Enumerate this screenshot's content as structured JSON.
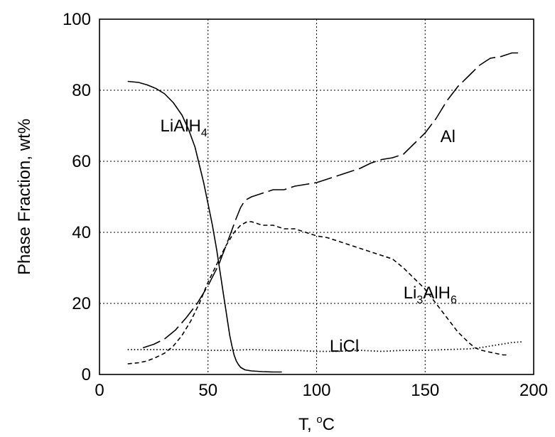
{
  "chart_data": {
    "type": "line",
    "title": "",
    "xlabel": "T, °C",
    "ylabel": "Phase Fraction, wt%",
    "xlim": [
      0,
      200
    ],
    "ylim": [
      0,
      100
    ],
    "x_ticks": [
      0,
      50,
      100,
      150,
      200
    ],
    "y_ticks": [
      0,
      20,
      40,
      60,
      80,
      100
    ],
    "grid": true,
    "legend": "inline labels",
    "series": [
      {
        "name": "LiAlH4",
        "label_main": "LiAlH",
        "label_sub": "4",
        "label_at": [
          28,
          70
        ],
        "style": "solid",
        "x": [
          13,
          18,
          22,
          26,
          30,
          34,
          38,
          41,
          44,
          46,
          48,
          50,
          52,
          54,
          56,
          57,
          58,
          59,
          60,
          61,
          62,
          63,
          64,
          65,
          67,
          70,
          75,
          80,
          84
        ],
        "y": [
          82.5,
          82.2,
          81.5,
          80.5,
          79,
          76.5,
          73,
          69,
          64,
          59,
          54,
          48,
          42,
          35,
          27,
          23,
          19,
          15,
          11,
          8,
          5.5,
          3.8,
          2.8,
          2,
          1.3,
          1,
          0.8,
          0.7,
          0.7
        ]
      },
      {
        "name": "Al",
        "label_main": "Al",
        "label_sub": "",
        "label_at": [
          157,
          67
        ],
        "style": "long-dash",
        "x": [
          20,
          25,
          30,
          35,
          40,
          45,
          50,
          55,
          60,
          63,
          65,
          67,
          70,
          75,
          80,
          85,
          90,
          95,
          100,
          105,
          110,
          115,
          120,
          125,
          130,
          135,
          140,
          145,
          150,
          155,
          160,
          165,
          170,
          175,
          180,
          185,
          190,
          195
        ],
        "y": [
          7.5,
          8.5,
          10,
          12.5,
          16,
          20,
          25,
          31,
          39,
          44,
          47,
          49,
          50,
          51,
          52,
          52,
          53,
          53.5,
          54,
          55,
          56,
          57,
          58,
          59.5,
          60.5,
          61,
          62,
          65,
          68,
          72,
          77,
          81,
          84,
          87,
          89,
          89.5,
          90.5,
          90.5
        ]
      },
      {
        "name": "Li3AlH6",
        "label_main": "Li",
        "label_sub": "3",
        "label_main2": "AlH",
        "label_sub2": "6",
        "label_at": [
          140,
          23
        ],
        "style": "short-dash",
        "x": [
          13,
          18,
          22,
          26,
          30,
          34,
          38,
          42,
          46,
          50,
          54,
          58,
          62,
          65,
          68,
          70,
          75,
          80,
          85,
          90,
          95,
          100,
          105,
          110,
          115,
          120,
          125,
          130,
          135,
          140,
          145,
          150,
          155,
          160,
          165,
          170,
          173,
          175,
          178,
          182,
          186,
          188
        ],
        "y": [
          3,
          3.3,
          3.8,
          4.8,
          6,
          8,
          11,
          15,
          20,
          26,
          31,
          36,
          40,
          42,
          43,
          43,
          42,
          42,
          41,
          41,
          40,
          39,
          38.5,
          37.5,
          36.5,
          35.5,
          34.5,
          33.5,
          32.5,
          30,
          27,
          24,
          20,
          16,
          12,
          9,
          7.5,
          7,
          6.5,
          6,
          5.5,
          5.5
        ]
      },
      {
        "name": "LiCl",
        "label_main": "LiCl",
        "label_sub": "",
        "label_at": [
          106,
          8
        ],
        "style": "dotted",
        "x": [
          13,
          20,
          30,
          40,
          50,
          60,
          70,
          80,
          90,
          100,
          110,
          120,
          130,
          140,
          150,
          160,
          170,
          175,
          180,
          185,
          190,
          195
        ],
        "y": [
          7,
          7,
          7,
          7,
          6.8,
          6.8,
          7,
          6.8,
          6.8,
          6.5,
          6.5,
          6.8,
          6.5,
          6.8,
          6.8,
          7,
          7.2,
          7.5,
          8,
          8.5,
          9,
          9.2
        ]
      }
    ]
  }
}
